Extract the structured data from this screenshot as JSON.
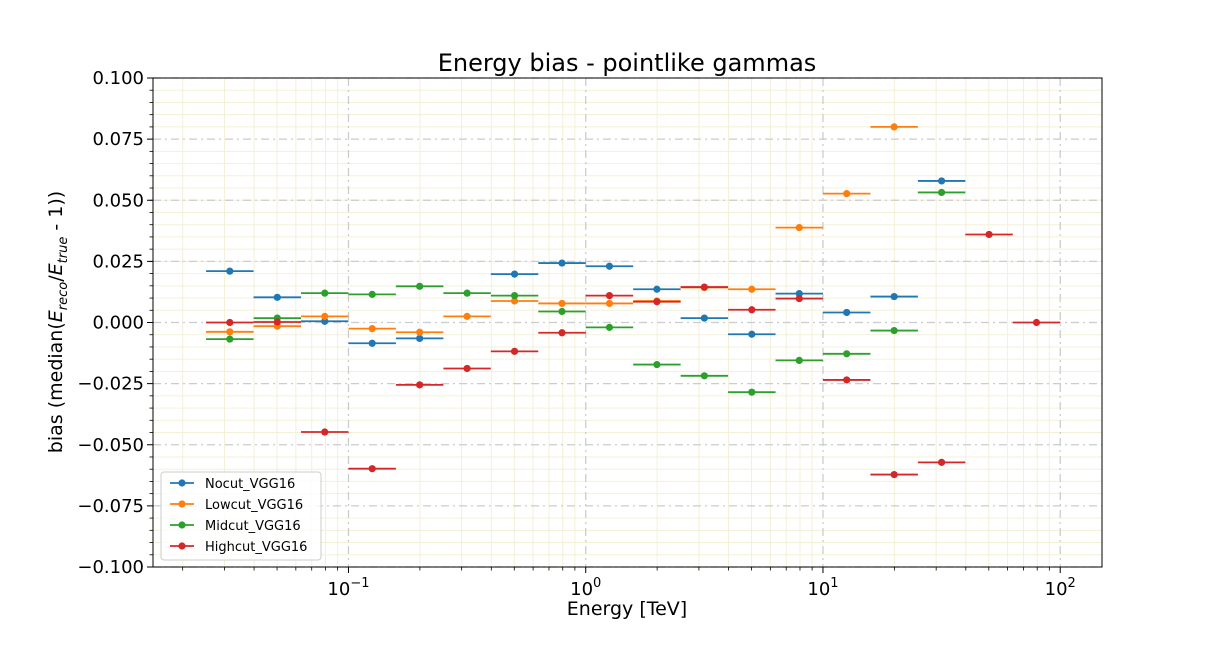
{
  "chart_data": {
    "type": "scatter",
    "title": "Energy bias - pointlike gammas",
    "xlabel": "Energy [TeV]",
    "ylabel_parts": {
      "prefix": "bias (median(",
      "e1": "E",
      "s1": "reco",
      "slash": "/",
      "e2": "E",
      "s2": "true",
      "suffix": " - 1))"
    },
    "xscale": "log",
    "xlim": [
      0.015,
      150
    ],
    "ylim": [
      -0.1,
      0.1
    ],
    "yticks": [
      -0.1,
      -0.075,
      -0.05,
      -0.025,
      0.0,
      0.025,
      0.05,
      0.075,
      0.1
    ],
    "ytick_labels": [
      "−0.100",
      "−0.075",
      "−0.050",
      "−0.025",
      "0.000",
      "0.025",
      "0.050",
      "0.075",
      "0.100"
    ],
    "xticks": [
      0.1,
      1,
      10,
      100
    ],
    "xtick_labels": [
      {
        "base": "10",
        "exp": "−1"
      },
      {
        "base": "10",
        "exp": "0"
      },
      {
        "base": "10",
        "exp": "1"
      },
      {
        "base": "10",
        "exp": "2"
      }
    ],
    "grid": true,
    "legend_position": "lower-left",
    "bin_edges": [
      0.0251,
      0.0398,
      0.0631,
      0.1,
      0.1585,
      0.2512,
      0.3981,
      0.631,
      1.0,
      1.585,
      2.512,
      3.981,
      6.31,
      10.0,
      15.85,
      25.12,
      39.81,
      63.1,
      100.0
    ],
    "series": [
      {
        "name": "Nocut_VGG16",
        "color": "#1f77b4",
        "points": [
          {
            "bin": 0,
            "y": 0.021
          },
          {
            "bin": 1,
            "y": 0.0103
          },
          {
            "bin": 2,
            "y": 0.0005
          },
          {
            "bin": 3,
            "y": -0.0085
          },
          {
            "bin": 4,
            "y": -0.0065
          },
          {
            "bin": 6,
            "y": 0.0198
          },
          {
            "bin": 7,
            "y": 0.0243
          },
          {
            "bin": 8,
            "y": 0.023
          },
          {
            "bin": 9,
            "y": 0.0136
          },
          {
            "bin": 10,
            "y": 0.0018
          },
          {
            "bin": 11,
            "y": -0.0048
          },
          {
            "bin": 12,
            "y": 0.0118
          },
          {
            "bin": 13,
            "y": 0.0041
          },
          {
            "bin": 14,
            "y": 0.0106
          },
          {
            "bin": 15,
            "y": 0.0579
          }
        ]
      },
      {
        "name": "Lowcut_VGG16",
        "color": "#ff7f0e",
        "points": [
          {
            "bin": 0,
            "y": -0.0038
          },
          {
            "bin": 1,
            "y": -0.0015
          },
          {
            "bin": 2,
            "y": 0.0025
          },
          {
            "bin": 3,
            "y": -0.0025
          },
          {
            "bin": 4,
            "y": -0.004
          },
          {
            "bin": 5,
            "y": 0.0025
          },
          {
            "bin": 6,
            "y": 0.0088
          },
          {
            "bin": 7,
            "y": 0.0078
          },
          {
            "bin": 8,
            "y": 0.0078
          },
          {
            "bin": 9,
            "y": 0.0088
          },
          {
            "bin": 10,
            "y": 0.0143
          },
          {
            "bin": 11,
            "y": 0.0136
          },
          {
            "bin": 12,
            "y": 0.0388
          },
          {
            "bin": 13,
            "y": 0.0527
          },
          {
            "bin": 14,
            "y": 0.08
          }
        ]
      },
      {
        "name": "Midcut_VGG16",
        "color": "#2ca02c",
        "points": [
          {
            "bin": 0,
            "y": -0.0068
          },
          {
            "bin": 1,
            "y": 0.0018
          },
          {
            "bin": 2,
            "y": 0.012
          },
          {
            "bin": 3,
            "y": 0.0115
          },
          {
            "bin": 4,
            "y": 0.0148
          },
          {
            "bin": 5,
            "y": 0.012
          },
          {
            "bin": 6,
            "y": 0.011
          },
          {
            "bin": 7,
            "y": 0.0045
          },
          {
            "bin": 8,
            "y": -0.002
          },
          {
            "bin": 9,
            "y": -0.0172
          },
          {
            "bin": 10,
            "y": -0.0218
          },
          {
            "bin": 11,
            "y": -0.0285
          },
          {
            "bin": 12,
            "y": -0.0155
          },
          {
            "bin": 13,
            "y": -0.0128
          },
          {
            "bin": 14,
            "y": -0.0033
          },
          {
            "bin": 15,
            "y": 0.0532
          }
        ]
      },
      {
        "name": "Highcut_VGG16",
        "color": "#d62728",
        "points": [
          {
            "bin": 0,
            "y": 0.0
          },
          {
            "bin": 1,
            "y": 0.0002
          },
          {
            "bin": 2,
            "y": -0.0448
          },
          {
            "bin": 3,
            "y": -0.0598
          },
          {
            "bin": 4,
            "y": -0.0255
          },
          {
            "bin": 5,
            "y": -0.0188
          },
          {
            "bin": 6,
            "y": -0.0118
          },
          {
            "bin": 7,
            "y": -0.0042
          },
          {
            "bin": 8,
            "y": 0.011
          },
          {
            "bin": 9,
            "y": 0.0085
          },
          {
            "bin": 10,
            "y": 0.0145
          },
          {
            "bin": 11,
            "y": 0.0052
          },
          {
            "bin": 12,
            "y": 0.0098
          },
          {
            "bin": 13,
            "y": -0.0235
          },
          {
            "bin": 14,
            "y": -0.0622
          },
          {
            "bin": 15,
            "y": -0.0572
          },
          {
            "bin": 16,
            "y": 0.036
          },
          {
            "bin": 17,
            "y": 0.0
          }
        ]
      }
    ]
  }
}
